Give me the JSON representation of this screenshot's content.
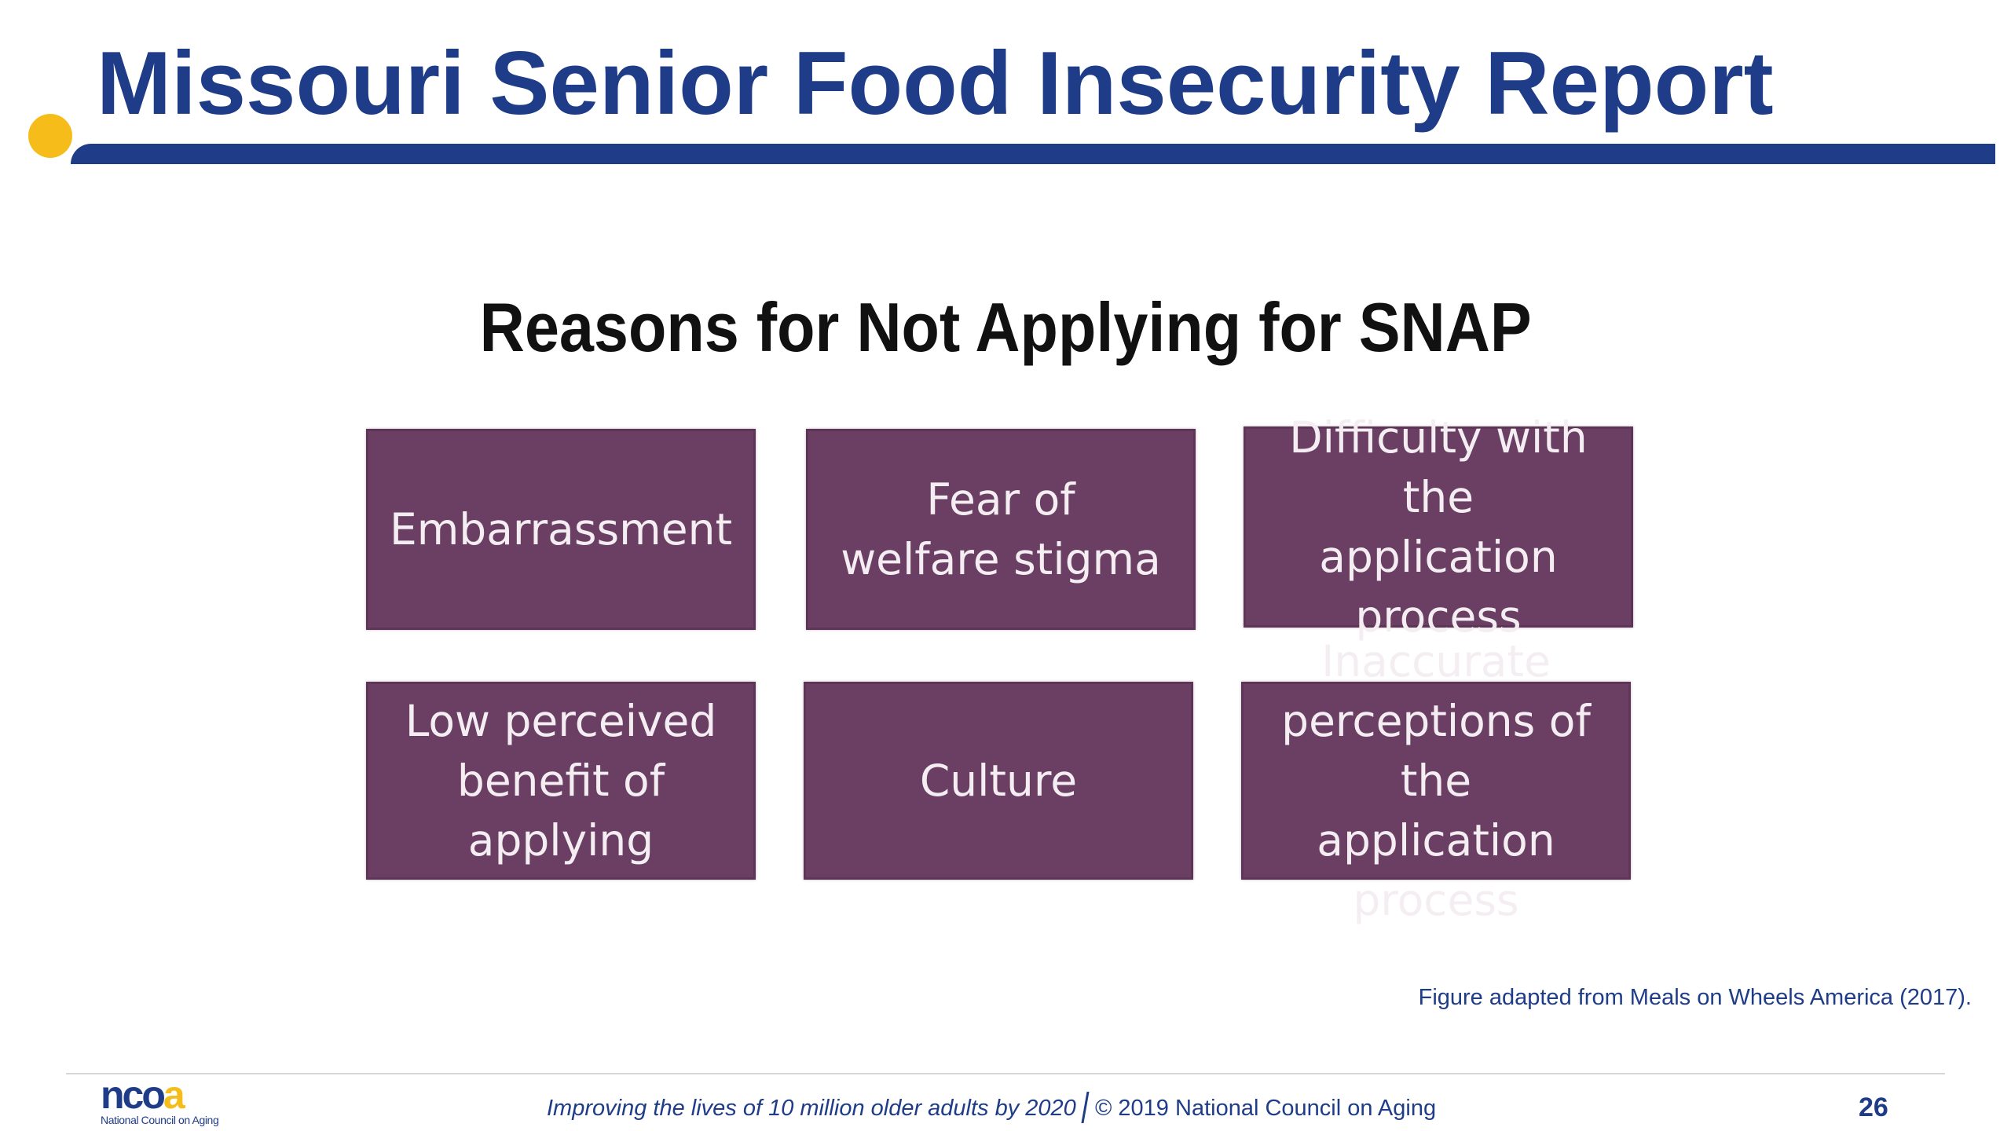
{
  "slide": {
    "title": "Missouri Senior Food Insecurity Report",
    "page_number": "26"
  },
  "figure": {
    "title": "Reasons for Not Applying for SNAP",
    "reasons": [
      "Embarrassment",
      "Fear of\nwelfare stigma",
      "Difficulty with the\napplication process",
      "Low perceived\nbenefit of applying",
      "Culture",
      "Inaccurate\nperceptions of the\napplication process"
    ],
    "caption": "Figure adapted from Meals on Wheels America (2017)."
  },
  "footer": {
    "logo_text_primary": "nco",
    "logo_text_accent": "a",
    "logo_subtitle": "National Council on Aging",
    "tagline": "Improving the lives of 10 million older adults by 2020",
    "copyright": "© 2019 National Council on Aging"
  },
  "colors": {
    "brand_navy": "#1f3c88",
    "brand_gold": "#f6bc1a",
    "box_purple": "#6b3f63"
  }
}
